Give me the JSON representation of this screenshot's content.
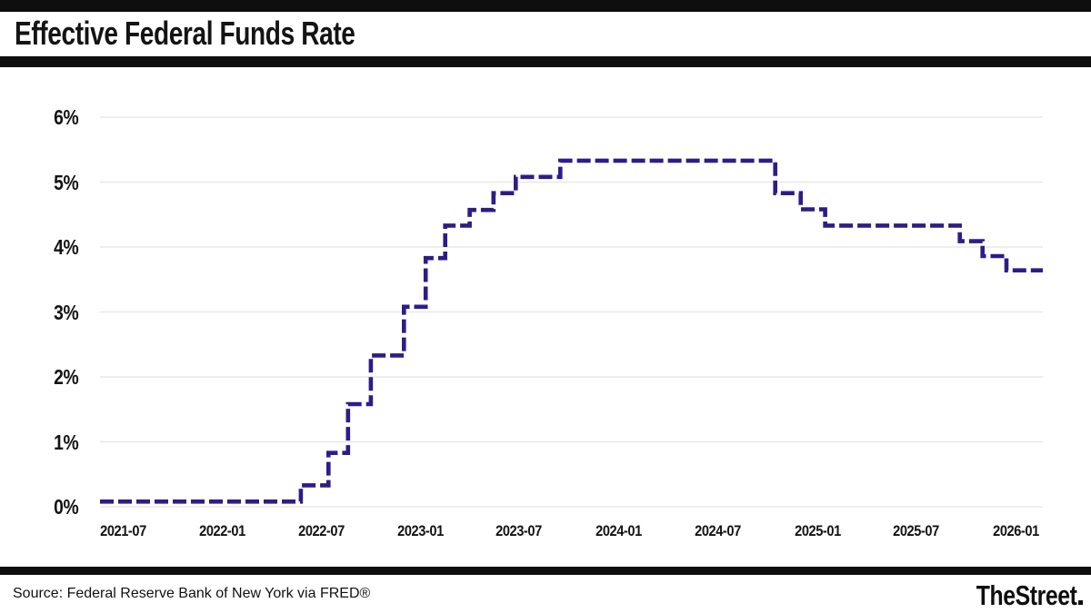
{
  "header": {
    "title": "Effective Federal Funds Rate"
  },
  "footer": {
    "source": "Source: Federal Reserve Bank of New York via FRED®",
    "brand": "TheStreet",
    "brand_dot": "."
  },
  "chart_data": {
    "type": "line",
    "step": "after",
    "dashed": true,
    "title": "Effective Federal Funds Rate",
    "xlabel": "",
    "ylabel": "",
    "ylim": [
      0,
      6
    ],
    "y_ticks": [
      "0%",
      "1%",
      "2%",
      "3%",
      "4%",
      "5%",
      "6%"
    ],
    "x_ticks": [
      "2021-07",
      "2022-01",
      "2022-07",
      "2023-01",
      "2023-07",
      "2024-01",
      "2024-07",
      "2025-01",
      "2025-07",
      "2026-01"
    ],
    "x_domain": [
      "2021-05-20",
      "2026-02-20"
    ],
    "grid": "horizontal",
    "grid_color": "#e8e8e8",
    "legend": "none",
    "line_color": "#2e1c87",
    "series": [
      {
        "name": "Effective Federal Funds Rate (%)",
        "points": [
          [
            "2021-05-20",
            0.08
          ],
          [
            "2022-05-25",
            0.33
          ],
          [
            "2022-07-15",
            0.83
          ],
          [
            "2022-08-20",
            1.58
          ],
          [
            "2022-10-01",
            2.33
          ],
          [
            "2022-12-01",
            3.08
          ],
          [
            "2023-01-10",
            3.83
          ],
          [
            "2023-02-15",
            4.33
          ],
          [
            "2023-04-01",
            4.57
          ],
          [
            "2023-05-15",
            4.83
          ],
          [
            "2023-06-25",
            5.08
          ],
          [
            "2023-09-15",
            5.33
          ],
          [
            "2024-10-15",
            4.83
          ],
          [
            "2024-12-01",
            4.58
          ],
          [
            "2025-01-15",
            4.33
          ],
          [
            "2025-09-20",
            4.09
          ],
          [
            "2025-11-01",
            3.86
          ],
          [
            "2025-12-15",
            3.64
          ],
          [
            "2026-02-20",
            3.64
          ]
        ]
      }
    ]
  }
}
